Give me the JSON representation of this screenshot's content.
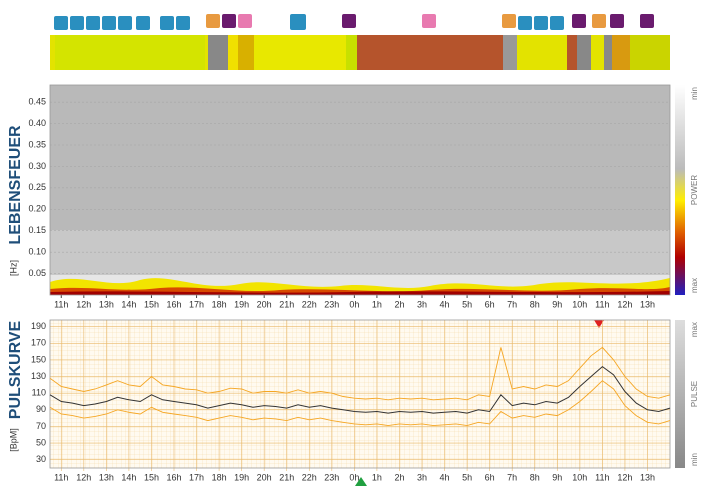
{
  "chart_data": [
    {
      "type": "spectrogram",
      "title": "LEBENSFEUER",
      "ylabel": "[Hz]",
      "ylim": [
        0,
        0.49
      ],
      "yticks": [
        0.05,
        {
          "value": 0.1,
          "label": "0.10"
        },
        0.15,
        {
          "value": 0.2,
          "label": "0.20"
        },
        0.25,
        {
          "value": 0.3,
          "label": "0.30"
        },
        0.35,
        {
          "value": 0.4,
          "label": "0.40"
        },
        0.45
      ],
      "xlim": [
        10.5,
        38
      ],
      "xticks": [
        {
          "value": 11,
          "label": "11h"
        },
        {
          "value": 12,
          "label": "12h"
        },
        {
          "value": 13,
          "label": "13h"
        },
        {
          "value": 14,
          "label": "14h"
        },
        {
          "value": 15,
          "label": "15h"
        },
        {
          "value": 16,
          "label": "16h"
        },
        {
          "value": 17,
          "label": "17h"
        },
        {
          "value": 18,
          "label": "18h"
        },
        {
          "value": 19,
          "label": "19h"
        },
        {
          "value": 20,
          "label": "20h"
        },
        {
          "value": 21,
          "label": "21h"
        },
        {
          "value": 22,
          "label": "22h"
        },
        {
          "value": 23,
          "label": "23h"
        },
        {
          "value": 24,
          "label": "0h"
        },
        {
          "value": 25,
          "label": "1h"
        },
        {
          "value": 26,
          "label": "2h"
        },
        {
          "value": 27,
          "label": "3h"
        },
        {
          "value": 28,
          "label": "4h"
        },
        {
          "value": 29,
          "label": "5h"
        },
        {
          "value": 30,
          "label": "6h"
        },
        {
          "value": 31,
          "label": "7h"
        },
        {
          "value": 32,
          "label": "8h"
        },
        {
          "value": 33,
          "label": "9h"
        },
        {
          "value": 34,
          "label": "10h"
        },
        {
          "value": 35,
          "label": "11h"
        },
        {
          "value": 36,
          "label": "12h"
        },
        {
          "value": 37,
          "label": "13h"
        }
      ],
      "colorbar": {
        "top": "min",
        "middle": "POWER",
        "bottom": "max"
      }
    },
    {
      "type": "line",
      "title": "PULSKURVE",
      "ylabel": "[BpM]",
      "ylim": [
        20,
        198
      ],
      "yticks": [
        30,
        50,
        70,
        90,
        110,
        130,
        150,
        170,
        190
      ],
      "xlim": [
        10.5,
        38
      ],
      "xticks": [
        {
          "value": 11,
          "label": "11h"
        },
        {
          "value": 12,
          "label": "12h"
        },
        {
          "value": 13,
          "label": "13h"
        },
        {
          "value": 14,
          "label": "14h"
        },
        {
          "value": 15,
          "label": "15h"
        },
        {
          "value": 16,
          "label": "16h"
        },
        {
          "value": 17,
          "label": "17h"
        },
        {
          "value": 18,
          "label": "18h"
        },
        {
          "value": 19,
          "label": "19h"
        },
        {
          "value": 20,
          "label": "20h"
        },
        {
          "value": 21,
          "label": "21h"
        },
        {
          "value": 22,
          "label": "22h"
        },
        {
          "value": 23,
          "label": "23h"
        },
        {
          "value": 24,
          "label": "0h"
        },
        {
          "value": 25,
          "label": "1h"
        },
        {
          "value": 26,
          "label": "2h"
        },
        {
          "value": 27,
          "label": "3h"
        },
        {
          "value": 28,
          "label": "4h"
        },
        {
          "value": 29,
          "label": "5h"
        },
        {
          "value": 30,
          "label": "6h"
        },
        {
          "value": 31,
          "label": "7h"
        },
        {
          "value": 32,
          "label": "8h"
        },
        {
          "value": 33,
          "label": "9h"
        },
        {
          "value": 34,
          "label": "10h"
        },
        {
          "value": 35,
          "label": "11h"
        },
        {
          "value": 36,
          "label": "12h"
        },
        {
          "value": 37,
          "label": "13h"
        }
      ],
      "x": [
        10.5,
        11,
        11.5,
        12,
        12.5,
        13,
        13.5,
        14,
        14.5,
        15,
        15.5,
        16,
        16.5,
        17,
        17.5,
        18,
        18.5,
        19,
        19.5,
        20,
        20.5,
        21,
        21.5,
        22,
        22.5,
        23,
        23.5,
        24,
        24.5,
        25,
        25.5,
        26,
        26.5,
        27,
        27.5,
        28,
        28.5,
        29,
        29.5,
        30,
        30.5,
        31,
        31.5,
        32,
        32.5,
        33,
        33.5,
        34,
        34.5,
        35,
        35.5,
        36,
        36.5,
        37,
        37.5,
        38
      ],
      "series": [
        {
          "color": "#f5a623",
          "values": [
            128,
            118,
            115,
            112,
            115,
            120,
            125,
            120,
            118,
            130,
            120,
            118,
            115,
            114,
            110,
            112,
            116,
            115,
            110,
            112,
            112,
            110,
            114,
            110,
            112,
            110,
            106,
            104,
            103,
            104,
            102,
            104,
            103,
            104,
            102,
            103,
            104,
            102,
            108,
            106,
            165,
            115,
            118,
            115,
            120,
            118,
            125,
            140,
            155,
            165,
            150,
            130,
            115,
            106,
            104,
            108
          ]
        },
        {
          "color": "#f5a623",
          "values": [
            93,
            85,
            83,
            80,
            82,
            85,
            90,
            87,
            85,
            93,
            87,
            85,
            83,
            81,
            77,
            80,
            83,
            81,
            78,
            80,
            79,
            77,
            81,
            78,
            80,
            77,
            75,
            73,
            72,
            73,
            71,
            73,
            72,
            73,
            71,
            72,
            73,
            71,
            75,
            73,
            88,
            80,
            83,
            81,
            85,
            83,
            90,
            100,
            112,
            125,
            115,
            95,
            83,
            75,
            73,
            77
          ]
        },
        {
          "color": "#333333",
          "values": [
            108,
            100,
            98,
            95,
            97,
            100,
            105,
            102,
            100,
            108,
            102,
            100,
            98,
            96,
            92,
            95,
            98,
            96,
            93,
            95,
            94,
            92,
            96,
            93,
            95,
            92,
            90,
            88,
            87,
            88,
            86,
            88,
            87,
            88,
            86,
            87,
            88,
            86,
            90,
            88,
            108,
            95,
            98,
            96,
            100,
            98,
            105,
            118,
            130,
            142,
            132,
            112,
            98,
            90,
            88,
            92
          ]
        }
      ],
      "colorbar": {
        "top": "max",
        "middle": "PULSE",
        "bottom": "min"
      }
    }
  ]
}
